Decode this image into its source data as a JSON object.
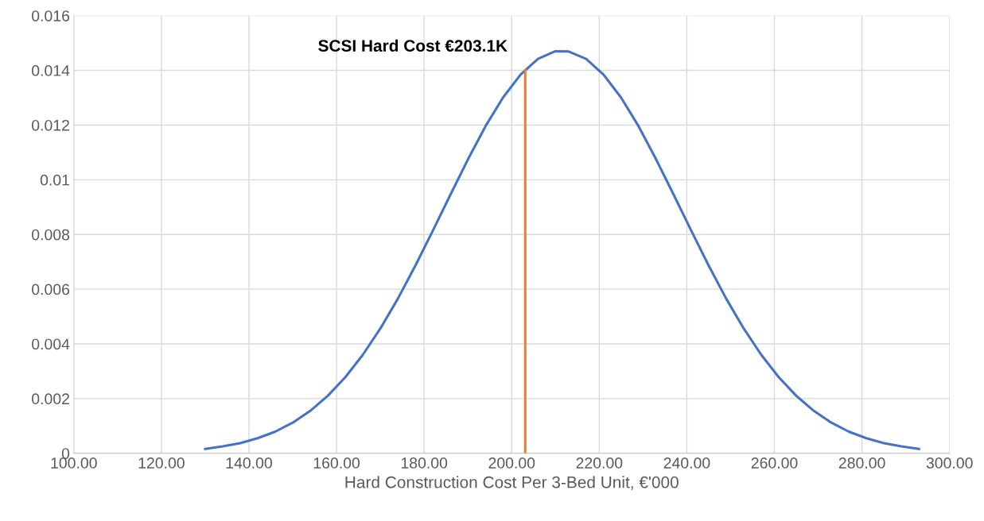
{
  "chart_data": {
    "type": "line",
    "xlabel": "Hard Construction Cost Per 3-Bed Unit, €'000",
    "series": [
      {
        "color": "#4472c4",
        "x": [
          130,
          134,
          138,
          142,
          146,
          150,
          154,
          158,
          162,
          166,
          170,
          174,
          178,
          182,
          186,
          190,
          194,
          198,
          202,
          206,
          210,
          213,
          217,
          221,
          225,
          229,
          233,
          237,
          241,
          245,
          249,
          253,
          257,
          261,
          265,
          269,
          273,
          277,
          281,
          285,
          289,
          293
        ],
        "values": [
          0.00016,
          0.00025,
          0.00037,
          0.00055,
          0.00079,
          0.00112,
          0.00155,
          0.0021,
          0.00278,
          0.0036,
          0.00456,
          0.00565,
          0.00686,
          0.00814,
          0.00945,
          0.01074,
          0.01195,
          0.013,
          0.01384,
          0.01442,
          0.0147,
          0.01469,
          0.01442,
          0.01384,
          0.013,
          0.01195,
          0.01074,
          0.00945,
          0.00814,
          0.00686,
          0.00565,
          0.00456,
          0.0036,
          0.00278,
          0.0021,
          0.00155,
          0.00112,
          0.00079,
          0.00055,
          0.00037,
          0.00025,
          0.00016
        ]
      },
      {
        "color": "#ed7d31",
        "x": [
          203.1,
          203.1
        ],
        "values": [
          0,
          0.014
        ]
      }
    ],
    "annotations": [
      {
        "text": "SCSI Hard Cost €203.1K",
        "x": 203.1,
        "y": 0.014
      }
    ],
    "xlim": [
      100,
      300
    ],
    "xticks": [
      {
        "value": 100,
        "label": "100.00"
      },
      {
        "value": 120,
        "label": "120.00"
      },
      {
        "value": 140,
        "label": "140.00"
      },
      {
        "value": 160,
        "label": "160.00"
      },
      {
        "value": 180,
        "label": "180.00"
      },
      {
        "value": 200,
        "label": "200.00"
      },
      {
        "value": 220,
        "label": "220.00"
      },
      {
        "value": 240,
        "label": "240.00"
      },
      {
        "value": 260,
        "label": "260.00"
      },
      {
        "value": 280,
        "label": "280.00"
      },
      {
        "value": 300,
        "label": "300.00"
      }
    ],
    "ylim": [
      0,
      0.016
    ],
    "yticks": [
      0,
      0.002,
      0.004,
      0.006,
      0.008,
      0.01,
      0.012,
      0.014,
      0.016
    ],
    "grid": true,
    "marker": "none",
    "line_style": "solid"
  }
}
